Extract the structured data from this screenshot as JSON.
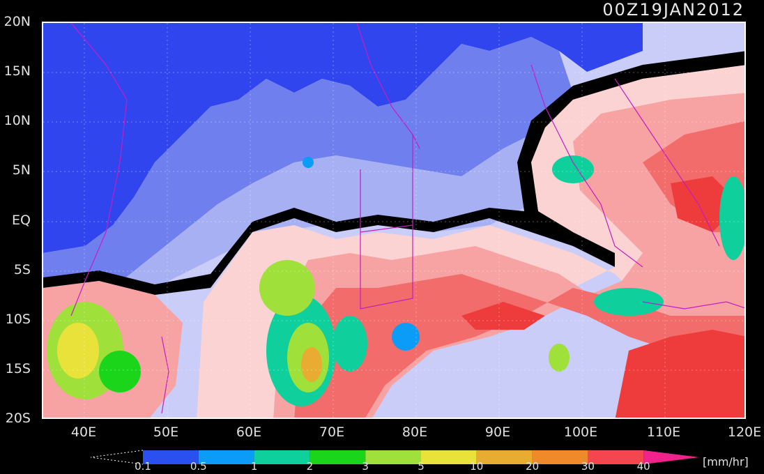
{
  "timestamp": "00Z19JAN2012",
  "latitude_labels": [
    "20N",
    "15N",
    "10N",
    "5N",
    "EQ",
    "5S",
    "10S",
    "15S",
    "20S"
  ],
  "longitude_labels": [
    "40E",
    "50E",
    "60E",
    "70E",
    "80E",
    "90E",
    "100E",
    "110E",
    "120E"
  ],
  "colorbar": {
    "units": "[mm/hr]",
    "ticks": [
      "0.1",
      "0.5",
      "1",
      "2",
      "3",
      "5",
      "10",
      "20",
      "30",
      "40"
    ],
    "colors": [
      "#2b50f0",
      "#0a9cf6",
      "#0fcf9c",
      "#1bd51b",
      "#a0e03a",
      "#e8e23a",
      "#e8ac32",
      "#ee8a2a",
      "#f4464e",
      "#f0238c"
    ]
  },
  "map_colors": {
    "deep_blue": "#3145ef",
    "mid_blue": "#6f7fee",
    "light_blue": "#a6b0f2",
    "pale_blue": "#d2d6f8",
    "zero_rain": "#000000",
    "pale_red": "#fbd3d3",
    "light_red": "#f7a3a3",
    "mid_red": "#f26c6c",
    "strong_red": "#ee3b3b",
    "coastline": "#c31ec3"
  }
}
